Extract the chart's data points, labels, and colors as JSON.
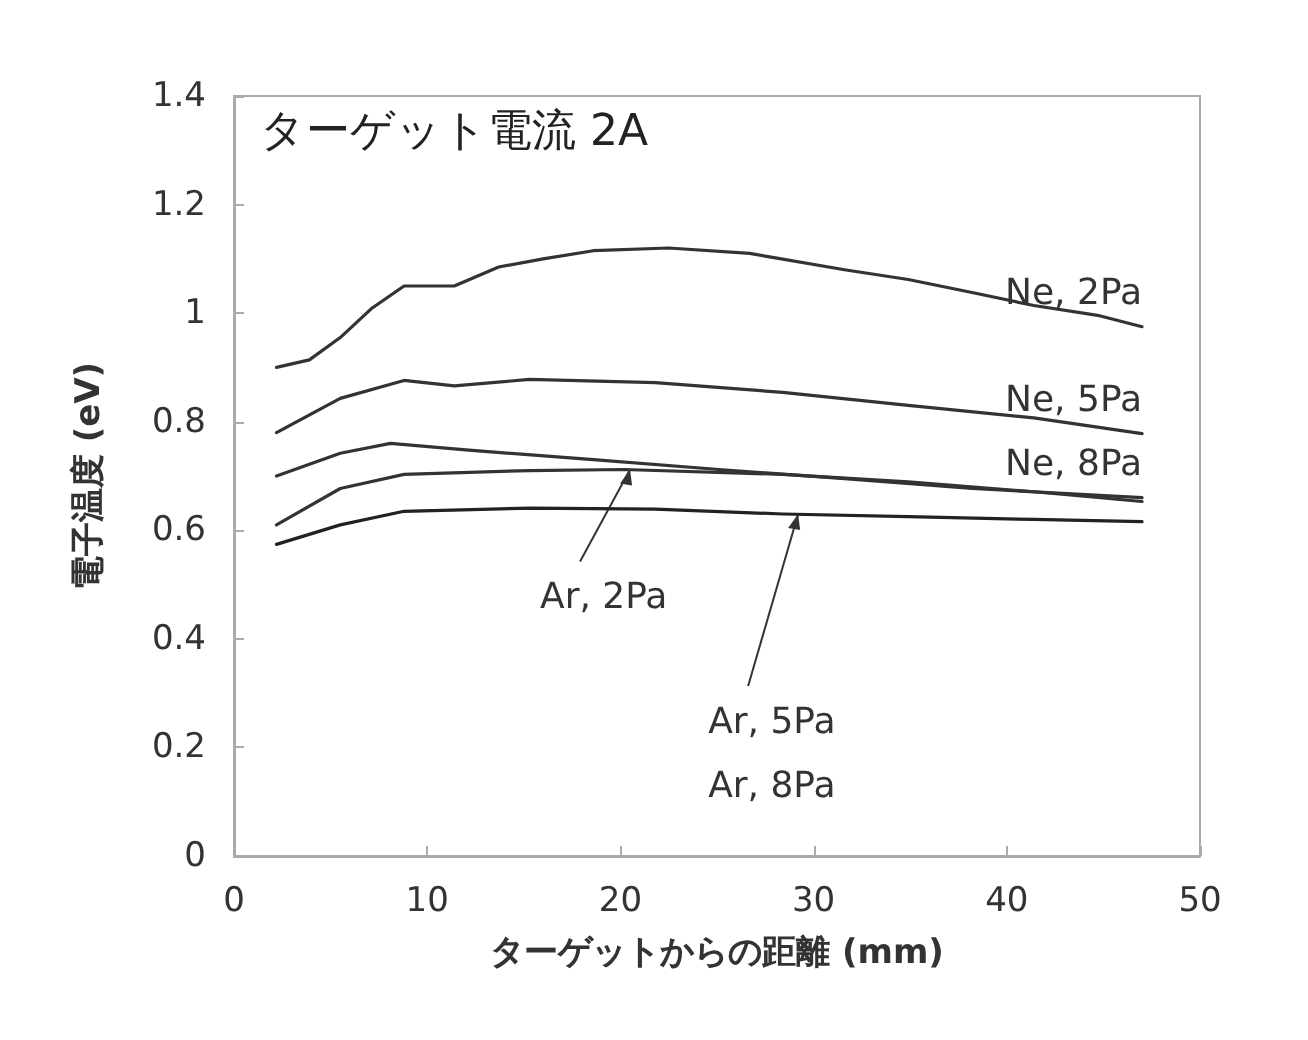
{
  "chart_data": {
    "type": "line",
    "title": "ターゲット電流 2A",
    "xlabel": "ターゲットからの距離 (mm)",
    "ylabel": "電子温度 (eV)",
    "xlim": [
      0,
      50
    ],
    "xticks": [
      0,
      10,
      20,
      30,
      40,
      50
    ],
    "ylim": [
      0,
      1.4
    ],
    "yticks": [
      0,
      0.2,
      0.4,
      0.6,
      0.8,
      1,
      1.2,
      1.4
    ],
    "grid": false,
    "legend": false,
    "marker": "none",
    "line_style": "solid",
    "series": [
      {
        "name": "Ne, 2Pa",
        "color": "#333333",
        "x": [
          2.2,
          3.9,
          5.5,
          7.1,
          8.8,
          11.4,
          13.7,
          16,
          18.6,
          22.5,
          26.7,
          31.6,
          34.9,
          38.2,
          41.4,
          44.7,
          47
        ],
        "values": [
          0.9,
          0.914,
          0.955,
          1.008,
          1.05,
          1.05,
          1.085,
          1.1,
          1.115,
          1.12,
          1.11,
          1.08,
          1.062,
          1.038,
          1.014,
          0.996,
          0.975
        ]
      },
      {
        "name": "Ne, 5Pa",
        "color": "#333333",
        "x": [
          2.2,
          5.5,
          8.8,
          11.4,
          15.3,
          21.8,
          28.4,
          34.9,
          41.4,
          47
        ],
        "values": [
          0.78,
          0.843,
          0.876,
          0.866,
          0.878,
          0.872,
          0.854,
          0.83,
          0.807,
          0.778
        ]
      },
      {
        "name": "Ne, 8Pa",
        "color": "#333333",
        "x": [
          2.2,
          5.5,
          8.1,
          12,
          18.6,
          25.1,
          31.6,
          38.2,
          47
        ],
        "values": [
          0.7,
          0.742,
          0.76,
          0.748,
          0.73,
          0.712,
          0.695,
          0.677,
          0.66
        ]
      },
      {
        "color": "#333333",
        "x": [
          2.2,
          5.5,
          8.8,
          15.3,
          20.2,
          28.4,
          34.9,
          41.4,
          47
        ],
        "values": [
          0.61,
          0.677,
          0.703,
          0.71,
          0.712,
          0.703,
          0.689,
          0.671,
          0.653
        ]
      },
      {
        "color": "#222222",
        "x": [
          2.2,
          5.5,
          8.8,
          15.3,
          21.8,
          28.4,
          34.9,
          41.4,
          47
        ],
        "values": [
          0.574,
          0.61,
          0.635,
          0.641,
          0.639,
          0.63,
          0.625,
          0.62,
          0.616
        ]
      }
    ],
    "annotations": [
      {
        "text": "Ar, 2Pa",
        "x": 20.5,
        "y": 0.712
      },
      {
        "text": "Ar, 5Pa\nAr, 8Pa",
        "x": 29.2,
        "y": 0.63
      }
    ]
  }
}
